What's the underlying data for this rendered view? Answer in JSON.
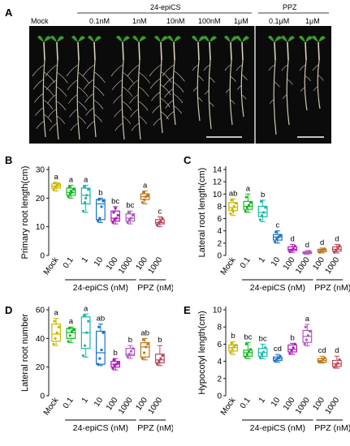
{
  "panel_letters": {
    "a": "A",
    "b": "B",
    "c": "C",
    "d": "D",
    "e": "E"
  },
  "photo": {
    "group_labels": {
      "epics": "24-epiCS",
      "ppz": "PPZ"
    },
    "lane_labels": [
      "Mock",
      "0.1nM",
      "1nM",
      "10nM",
      "100nM",
      "1μM",
      "0.1μM",
      "1μM"
    ]
  },
  "colors": [
    "#c8b800",
    "#16b824",
    "#18b8aa",
    "#1a73c8",
    "#b01ab8",
    "#b05ac0",
    "#c07818",
    "#b84858"
  ],
  "chart_data": [
    {
      "type": "box",
      "id": "B",
      "ylabel": "Primary root length(cm)",
      "ylim": [
        0,
        30
      ],
      "yticks": [
        0,
        10,
        20,
        30
      ],
      "categories": [
        "Mock",
        "0.1",
        "1",
        "10",
        "100",
        "1000",
        "100",
        "1000"
      ],
      "group_labels": [
        "24-epiCS (nM)",
        "PPZ (nM)"
      ],
      "letters": [
        "a",
        "a",
        "a",
        "b",
        "bc",
        "bc",
        "a",
        "c"
      ],
      "boxes": [
        {
          "min": 22.5,
          "q1": 23.5,
          "median": 24.2,
          "q3": 25.0,
          "max": 25.5,
          "points": [
            23,
            24,
            24.5,
            25,
            25.3,
            23.8
          ]
        },
        {
          "min": 20.0,
          "q1": 21.0,
          "median": 22.0,
          "q3": 23.5,
          "max": 24.5,
          "points": [
            20.5,
            21.5,
            22,
            23,
            24,
            22.5
          ]
        },
        {
          "min": 15.0,
          "q1": 18.0,
          "median": 21.0,
          "q3": 23.5,
          "max": 24.5,
          "points": [
            15.5,
            18.5,
            21,
            23,
            24,
            20
          ]
        },
        {
          "min": 11.5,
          "q1": 12.5,
          "median": 18.0,
          "q3": 19.5,
          "max": 20.0,
          "points": [
            12,
            13,
            17,
            19,
            19.5
          ]
        },
        {
          "min": 11.0,
          "q1": 12.0,
          "median": 13.0,
          "q3": 15.5,
          "max": 17.0,
          "points": [
            11.5,
            12.5,
            13,
            14,
            15,
            16.5
          ]
        },
        {
          "min": 11.0,
          "q1": 12.0,
          "median": 13.0,
          "q3": 14.5,
          "max": 15.5,
          "points": [
            11.5,
            12.5,
            13,
            14,
            15
          ]
        },
        {
          "min": 18.0,
          "q1": 19.5,
          "median": 20.5,
          "q3": 21.5,
          "max": 22.5,
          "points": [
            18.5,
            19.5,
            20.5,
            21,
            22
          ]
        },
        {
          "min": 10.0,
          "q1": 11.0,
          "median": 11.5,
          "q3": 12.5,
          "max": 13.5,
          "points": [
            10.5,
            11.5,
            12,
            13
          ]
        }
      ]
    },
    {
      "type": "box",
      "id": "C",
      "ylabel": "Lateral root length(cm)",
      "ylim": [
        0,
        14
      ],
      "yticks": [
        0,
        2,
        4,
        6,
        8,
        10,
        12,
        14
      ],
      "categories": [
        "Mock",
        "0.1",
        "1",
        "10",
        "100",
        "1000",
        "100",
        "1000"
      ],
      "group_labels": [
        "24-epiCS (nM)",
        "PPZ (nM)"
      ],
      "letters": [
        "ab",
        "a",
        "b",
        "c",
        "d",
        "d",
        "d",
        "d"
      ],
      "boxes": [
        {
          "min": 6.5,
          "q1": 7.3,
          "median": 7.8,
          "q3": 8.6,
          "max": 9.2,
          "points": [
            6.8,
            7.5,
            8,
            8.5,
            9,
            7.2
          ]
        },
        {
          "min": 7.0,
          "q1": 7.5,
          "median": 8.0,
          "q3": 8.8,
          "max": 10.0,
          "points": [
            7.2,
            7.8,
            8.2,
            8.6,
            9.5
          ]
        },
        {
          "min": 5.5,
          "q1": 6.3,
          "median": 7.0,
          "q3": 8.0,
          "max": 9.0,
          "points": [
            5.8,
            6.5,
            7,
            7.8,
            8.8
          ]
        },
        {
          "min": 2.0,
          "q1": 2.5,
          "median": 3.0,
          "q3": 3.4,
          "max": 4.0,
          "points": [
            2.2,
            2.7,
            3,
            3.3,
            3.8
          ]
        },
        {
          "min": 0.5,
          "q1": 0.8,
          "median": 1.0,
          "q3": 1.4,
          "max": 1.8,
          "points": [
            0.6,
            0.9,
            1.1,
            1.5
          ]
        },
        {
          "min": 0.2,
          "q1": 0.3,
          "median": 0.45,
          "q3": 0.6,
          "max": 0.8,
          "points": [
            0.3,
            0.4,
            0.5,
            0.7
          ]
        },
        {
          "min": 0.4,
          "q1": 0.6,
          "median": 0.8,
          "q3": 1.0,
          "max": 1.2,
          "points": [
            0.5,
            0.7,
            0.9,
            1.1
          ]
        },
        {
          "min": 0.4,
          "q1": 0.7,
          "median": 1.0,
          "q3": 1.4,
          "max": 1.8,
          "points": [
            0.5,
            0.8,
            1.2,
            1.6
          ]
        }
      ]
    },
    {
      "type": "box",
      "id": "D",
      "ylabel": "Lateral root number",
      "ylim": [
        0,
        60
      ],
      "yticks": [
        0,
        20,
        40,
        60
      ],
      "categories": [
        "Mock",
        "0.1",
        "1",
        "10",
        "100",
        "1000",
        "100",
        "1000"
      ],
      "group_labels": [
        "24-epiCS (nM)",
        "PPZ (nM)"
      ],
      "letters": [
        "a",
        "a",
        "a",
        "ab",
        "b",
        "b",
        "ab",
        "b"
      ],
      "boxes": [
        {
          "min": 35,
          "q1": 38,
          "median": 43,
          "q3": 50,
          "max": 54,
          "points": [
            36,
            40,
            44,
            48,
            52
          ]
        },
        {
          "min": 37,
          "q1": 40,
          "median": 44,
          "q3": 47,
          "max": 48,
          "points": [
            38,
            42,
            45,
            46,
            47
          ]
        },
        {
          "min": 27,
          "q1": 33,
          "median": 44,
          "q3": 55,
          "max": 57,
          "points": [
            28,
            35,
            44,
            52,
            56
          ]
        },
        {
          "min": 21,
          "q1": 22,
          "median": 30,
          "q3": 45,
          "max": 50,
          "points": [
            22,
            26,
            32,
            44,
            48
          ]
        },
        {
          "min": 18,
          "q1": 20,
          "median": 22,
          "q3": 24,
          "max": 26,
          "points": [
            19,
            21,
            22,
            23,
            25
          ]
        },
        {
          "min": 26,
          "q1": 28,
          "median": 29,
          "q3": 33,
          "max": 35,
          "points": [
            27,
            29,
            31,
            33
          ]
        },
        {
          "min": 25,
          "q1": 27,
          "median": 34,
          "q3": 37,
          "max": 40,
          "points": [
            26,
            30,
            34,
            36,
            39
          ]
        },
        {
          "min": 21,
          "q1": 23,
          "median": 25,
          "q3": 29,
          "max": 35,
          "points": [
            22,
            24,
            26,
            28
          ]
        }
      ]
    },
    {
      "type": "box",
      "id": "E",
      "ylabel": "Hypocotyl length(cm)",
      "ylim": [
        0,
        10
      ],
      "yticks": [
        0,
        2,
        4,
        6,
        8,
        10
      ],
      "categories": [
        "Mock",
        "0.1",
        "1",
        "10",
        "100",
        "1000",
        "100",
        "1000"
      ],
      "group_labels": [
        "24-epiCS (nM)",
        "PPZ (nM)"
      ],
      "letters": [
        "b",
        "bc",
        "bc",
        "cd",
        "b",
        "a",
        "cd",
        "d"
      ],
      "boxes": [
        {
          "min": 4.8,
          "q1": 5.2,
          "median": 5.6,
          "q3": 5.9,
          "max": 6.3,
          "points": [
            5,
            5.4,
            5.7,
            5.9,
            6.1
          ]
        },
        {
          "min": 4.3,
          "q1": 4.6,
          "median": 5.0,
          "q3": 5.3,
          "max": 6.2,
          "points": [
            4.5,
            4.8,
            5.1,
            5.4,
            6
          ]
        },
        {
          "min": 4.3,
          "q1": 4.6,
          "median": 5.0,
          "q3": 5.5,
          "max": 6.0,
          "points": [
            4.4,
            4.8,
            5.1,
            5.6
          ]
        },
        {
          "min": 3.9,
          "q1": 4.1,
          "median": 4.3,
          "q3": 4.5,
          "max": 4.8,
          "points": [
            4,
            4.2,
            4.4,
            4.6
          ]
        },
        {
          "min": 4.8,
          "q1": 5.1,
          "median": 5.4,
          "q3": 5.9,
          "max": 6.1,
          "points": [
            4.9,
            5.3,
            5.6,
            6
          ]
        },
        {
          "min": 5.8,
          "q1": 6.2,
          "median": 6.9,
          "q3": 7.6,
          "max": 8.3,
          "points": [
            6,
            6.5,
            7,
            7.5,
            8
          ]
        },
        {
          "min": 3.8,
          "q1": 3.9,
          "median": 4.1,
          "q3": 4.3,
          "max": 4.6,
          "points": [
            3.9,
            4,
            4.2,
            4.4
          ]
        },
        {
          "min": 3.2,
          "q1": 3.4,
          "median": 3.7,
          "q3": 4.1,
          "max": 4.6,
          "points": [
            3.3,
            3.6,
            3.8,
            4.2
          ]
        }
      ]
    }
  ]
}
